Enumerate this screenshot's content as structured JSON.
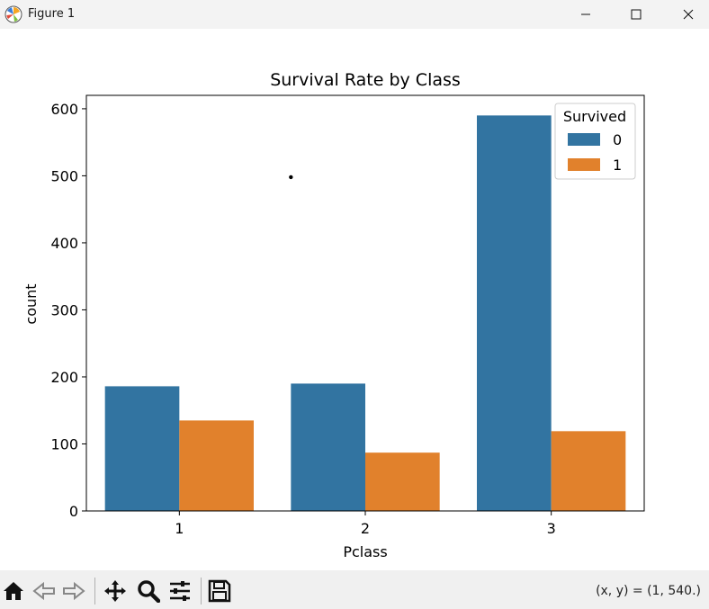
{
  "window": {
    "title": "Figure 1",
    "minimize_icon": "minimize-icon",
    "maximize_icon": "maximize-icon",
    "close_icon": "close-icon"
  },
  "toolbar": {
    "items": [
      "home-icon",
      "back-icon",
      "forward-icon",
      "pan-icon",
      "zoom-icon",
      "configure-subplots-icon",
      "save-icon"
    ],
    "coords": "(x, y) = (1, 540.)"
  },
  "chart_data": {
    "type": "bar",
    "title": "Survival Rate by Class",
    "xlabel": "Pclass",
    "ylabel": "count",
    "categories": [
      "1",
      "2",
      "3"
    ],
    "series": [
      {
        "name": "0",
        "values": [
          186,
          190,
          590
        ],
        "color": "#3274a1"
      },
      {
        "name": "1",
        "values": [
          135,
          87,
          119
        ],
        "color": "#e1812c"
      }
    ],
    "ylim": [
      0,
      620
    ],
    "yticks": [
      0,
      100,
      200,
      300,
      400,
      500,
      600
    ],
    "legend": {
      "title": "Survived",
      "placement": "top-right"
    },
    "grid": false,
    "annotations": [
      {
        "type": "point",
        "x": 0.6,
        "y": 498
      }
    ]
  }
}
